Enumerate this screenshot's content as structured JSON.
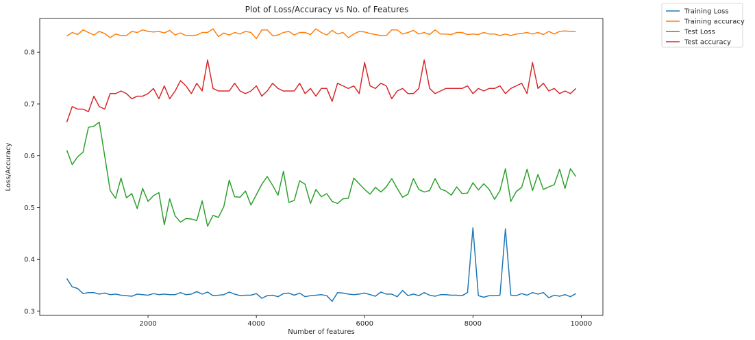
{
  "chart_data": {
    "type": "line",
    "title": "Plot of Loss/Accuracy vs No. of Features",
    "xlabel": "Number of features",
    "ylabel": "Loss/Accuracy",
    "xlim": [
      0,
      10400
    ],
    "ylim": [
      0.292,
      0.865
    ],
    "xticks": [
      2000,
      4000,
      6000,
      8000,
      10000
    ],
    "yticks": [
      0.3,
      0.4,
      0.5,
      0.6,
      0.7,
      0.8
    ],
    "grid": false,
    "legend_position": "outside-top-right",
    "x": [
      500,
      600,
      700,
      800,
      900,
      1000,
      1100,
      1200,
      1300,
      1400,
      1500,
      1600,
      1700,
      1800,
      1900,
      2000,
      2100,
      2200,
      2300,
      2400,
      2500,
      2600,
      2700,
      2800,
      2900,
      3000,
      3100,
      3200,
      3300,
      3400,
      3500,
      3600,
      3700,
      3800,
      3900,
      4000,
      4100,
      4200,
      4300,
      4400,
      4500,
      4600,
      4700,
      4800,
      4900,
      5000,
      5100,
      5200,
      5300,
      5400,
      5500,
      5600,
      5700,
      5800,
      5900,
      6000,
      6100,
      6200,
      6300,
      6400,
      6500,
      6600,
      6700,
      6800,
      6900,
      7000,
      7100,
      7200,
      7300,
      7400,
      7500,
      7600,
      7700,
      7800,
      7900,
      8000,
      8100,
      8200,
      8300,
      8400,
      8500,
      8600,
      8700,
      8800,
      8900,
      9000,
      9100,
      9200,
      9300,
      9400,
      9500,
      9600,
      9700,
      9800,
      9900
    ],
    "series": [
      {
        "name": "Training Loss",
        "color": "#1f77b4",
        "values": [
          0.363,
          0.347,
          0.344,
          0.334,
          0.336,
          0.336,
          0.333,
          0.335,
          0.332,
          0.333,
          0.331,
          0.33,
          0.329,
          0.333,
          0.332,
          0.331,
          0.334,
          0.332,
          0.333,
          0.332,
          0.332,
          0.336,
          0.332,
          0.333,
          0.338,
          0.333,
          0.337,
          0.33,
          0.331,
          0.332,
          0.337,
          0.333,
          0.33,
          0.331,
          0.331,
          0.334,
          0.325,
          0.33,
          0.331,
          0.328,
          0.334,
          0.335,
          0.331,
          0.335,
          0.328,
          0.33,
          0.331,
          0.332,
          0.33,
          0.319,
          0.336,
          0.335,
          0.333,
          0.332,
          0.333,
          0.335,
          0.332,
          0.329,
          0.337,
          0.333,
          0.333,
          0.328,
          0.34,
          0.33,
          0.333,
          0.33,
          0.336,
          0.331,
          0.329,
          0.332,
          0.332,
          0.331,
          0.331,
          0.33,
          0.336,
          0.461,
          0.33,
          0.327,
          0.33,
          0.33,
          0.331,
          0.459,
          0.331,
          0.33,
          0.334,
          0.331,
          0.336,
          0.333,
          0.336,
          0.326,
          0.331,
          0.329,
          0.332,
          0.328,
          0.334
        ]
      },
      {
        "name": "Training accuracy",
        "color": "#ff7f0e",
        "values": [
          0.831,
          0.838,
          0.834,
          0.843,
          0.838,
          0.833,
          0.84,
          0.836,
          0.828,
          0.835,
          0.832,
          0.832,
          0.84,
          0.838,
          0.843,
          0.84,
          0.839,
          0.84,
          0.837,
          0.842,
          0.833,
          0.837,
          0.832,
          0.832,
          0.833,
          0.838,
          0.838,
          0.845,
          0.83,
          0.837,
          0.833,
          0.838,
          0.835,
          0.84,
          0.838,
          0.826,
          0.843,
          0.843,
          0.832,
          0.833,
          0.838,
          0.84,
          0.833,
          0.838,
          0.838,
          0.834,
          0.845,
          0.838,
          0.833,
          0.842,
          0.835,
          0.838,
          0.828,
          0.835,
          0.84,
          0.839,
          0.836,
          0.834,
          0.832,
          0.832,
          0.843,
          0.843,
          0.835,
          0.838,
          0.842,
          0.835,
          0.838,
          0.834,
          0.843,
          0.835,
          0.835,
          0.834,
          0.838,
          0.838,
          0.834,
          0.835,
          0.834,
          0.838,
          0.835,
          0.835,
          0.832,
          0.835,
          0.832,
          0.835,
          0.836,
          0.838,
          0.835,
          0.838,
          0.834,
          0.84,
          0.835,
          0.84,
          0.841,
          0.84,
          0.84
        ]
      },
      {
        "name": "Test Loss",
        "color": "#2ca02c",
        "values": [
          0.611,
          0.583,
          0.598,
          0.607,
          0.655,
          0.657,
          0.665,
          0.6,
          0.533,
          0.518,
          0.557,
          0.519,
          0.527,
          0.498,
          0.537,
          0.512,
          0.523,
          0.529,
          0.467,
          0.517,
          0.484,
          0.472,
          0.479,
          0.478,
          0.475,
          0.513,
          0.464,
          0.485,
          0.481,
          0.502,
          0.553,
          0.521,
          0.52,
          0.532,
          0.505,
          0.525,
          0.545,
          0.56,
          0.543,
          0.524,
          0.57,
          0.51,
          0.514,
          0.552,
          0.545,
          0.508,
          0.535,
          0.521,
          0.527,
          0.512,
          0.508,
          0.517,
          0.518,
          0.557,
          0.546,
          0.535,
          0.526,
          0.539,
          0.53,
          0.54,
          0.556,
          0.537,
          0.52,
          0.526,
          0.556,
          0.535,
          0.53,
          0.533,
          0.556,
          0.536,
          0.532,
          0.524,
          0.54,
          0.527,
          0.528,
          0.548,
          0.534,
          0.546,
          0.535,
          0.516,
          0.533,
          0.575,
          0.512,
          0.531,
          0.539,
          0.574,
          0.533,
          0.564,
          0.535,
          0.54,
          0.544,
          0.574,
          0.537,
          0.575,
          0.56
        ]
      },
      {
        "name": "Test accuracy",
        "color": "#d62728",
        "values": [
          0.665,
          0.695,
          0.69,
          0.69,
          0.685,
          0.715,
          0.695,
          0.69,
          0.72,
          0.72,
          0.725,
          0.72,
          0.71,
          0.715,
          0.715,
          0.72,
          0.73,
          0.71,
          0.735,
          0.71,
          0.725,
          0.745,
          0.735,
          0.72,
          0.74,
          0.725,
          0.785,
          0.73,
          0.725,
          0.725,
          0.725,
          0.74,
          0.725,
          0.72,
          0.725,
          0.735,
          0.715,
          0.725,
          0.74,
          0.73,
          0.725,
          0.725,
          0.725,
          0.74,
          0.72,
          0.73,
          0.715,
          0.73,
          0.73,
          0.705,
          0.74,
          0.735,
          0.73,
          0.735,
          0.72,
          0.78,
          0.735,
          0.73,
          0.74,
          0.735,
          0.71,
          0.725,
          0.73,
          0.72,
          0.72,
          0.73,
          0.785,
          0.73,
          0.72,
          0.725,
          0.73,
          0.73,
          0.73,
          0.73,
          0.735,
          0.72,
          0.73,
          0.725,
          0.73,
          0.73,
          0.735,
          0.72,
          0.73,
          0.735,
          0.74,
          0.72,
          0.78,
          0.73,
          0.74,
          0.725,
          0.73,
          0.72,
          0.725,
          0.72,
          0.73
        ]
      }
    ]
  }
}
